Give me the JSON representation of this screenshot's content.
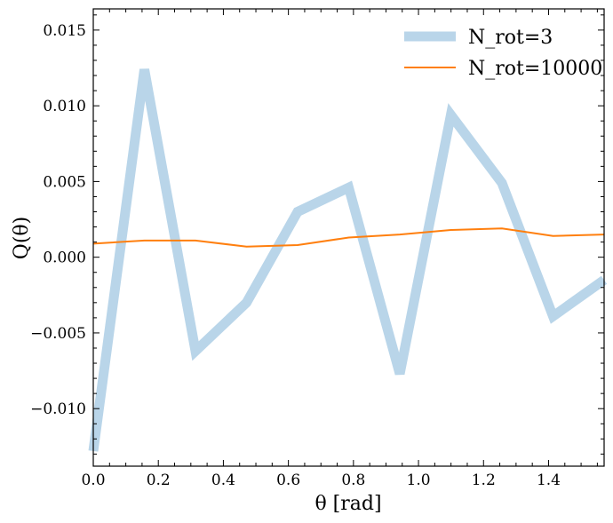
{
  "chart_data": {
    "type": "line",
    "xlabel": "θ [rad]",
    "ylabel": "Q(θ)",
    "xlim": [
      0.0,
      1.5708
    ],
    "ylim": [
      -0.0138,
      0.0164
    ],
    "x_ticks": [
      0.0,
      0.2,
      0.4,
      0.6,
      0.8,
      1.0,
      1.2,
      1.4
    ],
    "x_tick_labels": [
      "0.0",
      "0.2",
      "0.4",
      "0.6",
      "0.8",
      "1.0",
      "1.2",
      "1.4"
    ],
    "y_ticks": [
      -0.01,
      -0.005,
      0.0,
      0.005,
      0.01,
      0.015
    ],
    "y_tick_labels": [
      "−0.010",
      "−0.005",
      "0.000",
      "0.005",
      "0.010",
      "0.015"
    ],
    "grid": false,
    "legend_position": "top-right",
    "series": [
      {
        "name": "N_rot=3",
        "color": "#b9d5e9",
        "x": [
          0.0,
          0.1571,
          0.3142,
          0.4712,
          0.6283,
          0.7854,
          0.9425,
          1.0996,
          1.2566,
          1.4137,
          1.5708
        ],
        "values": [
          -0.0128,
          0.0124,
          -0.0062,
          -0.003,
          0.003,
          0.0046,
          -0.0077,
          0.0094,
          0.0049,
          -0.0039,
          -0.0015
        ]
      },
      {
        "name": "N_rot=10000",
        "color": "#ff7f0e",
        "x": [
          0.0,
          0.1571,
          0.3142,
          0.4712,
          0.6283,
          0.7854,
          0.9425,
          1.0996,
          1.2566,
          1.4137,
          1.5708
        ],
        "values": [
          0.0009,
          0.0011,
          0.0011,
          0.0007,
          0.0008,
          0.0013,
          0.0015,
          0.0018,
          0.0019,
          0.0014,
          0.0015
        ]
      }
    ]
  }
}
